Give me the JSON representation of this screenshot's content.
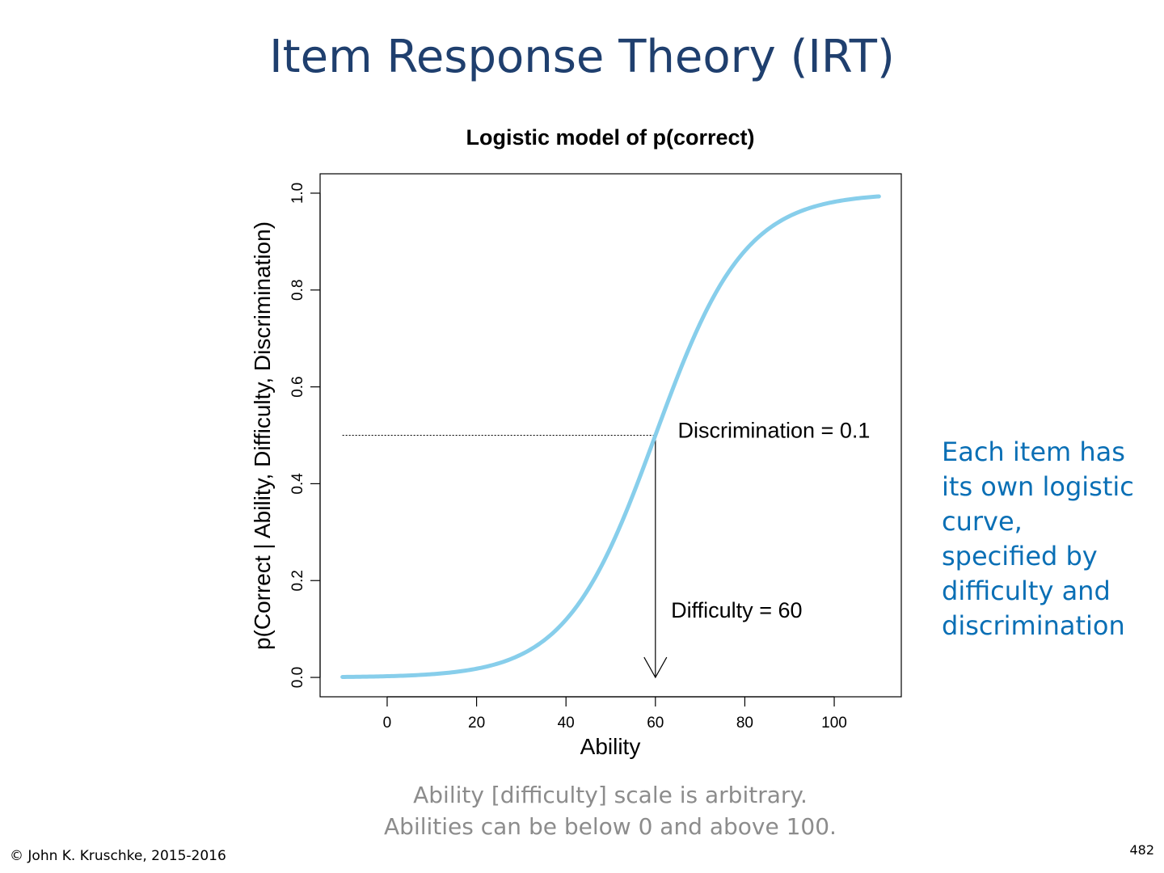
{
  "slide": {
    "title": "Item Response Theory (IRT)",
    "side_note": [
      "Each item has",
      "its own logistic",
      "curve,",
      "specified by",
      "difficulty and",
      "discrimination"
    ],
    "bottom_note": [
      "Ability [difficulty] scale is arbitrary.",
      "Abilities can be below 0 and above 100."
    ],
    "copyright": "© John K. Kruschke, 2015-2016",
    "page_number": "482"
  },
  "colors": {
    "title": "#1f3f6e",
    "side_note": "#0a6fb5",
    "bottom_note": "#8c8c8c",
    "curve": "#87ceeb"
  },
  "chart_data": {
    "type": "line",
    "title": "Logistic model of p(correct)",
    "xlabel": "Ability",
    "ylabel": "p(Correct | Ability, Difficulty, Discrimination)",
    "xlim": [
      -15,
      115
    ],
    "ylim": [
      -0.04,
      1.04
    ],
    "x_ticks": [
      0,
      20,
      40,
      60,
      80,
      100
    ],
    "y_ticks": [
      0.0,
      0.2,
      0.4,
      0.6,
      0.8,
      1.0
    ],
    "x_tick_labels": [
      "0",
      "20",
      "40",
      "60",
      "80",
      "100"
    ],
    "y_tick_labels": [
      "0.0",
      "0.2",
      "0.4",
      "0.6",
      "0.8",
      "1.0"
    ],
    "series": [
      {
        "function": "logistic",
        "difficulty": 60,
        "discrimination": 0.1,
        "x_range": [
          -10,
          110
        ]
      }
    ],
    "difficulty_marker": {
      "x": 60,
      "y": 0.5,
      "x_start": -10
    },
    "annotations": {
      "discrimination": {
        "label": "Discrimination",
        "operator": "=",
        "value": "0.1",
        "x": 65,
        "y": 0.495
      },
      "difficulty": {
        "label": "Difficulty",
        "operator": "=",
        "value": "60",
        "x": 63.5,
        "y": 0.124
      }
    }
  }
}
